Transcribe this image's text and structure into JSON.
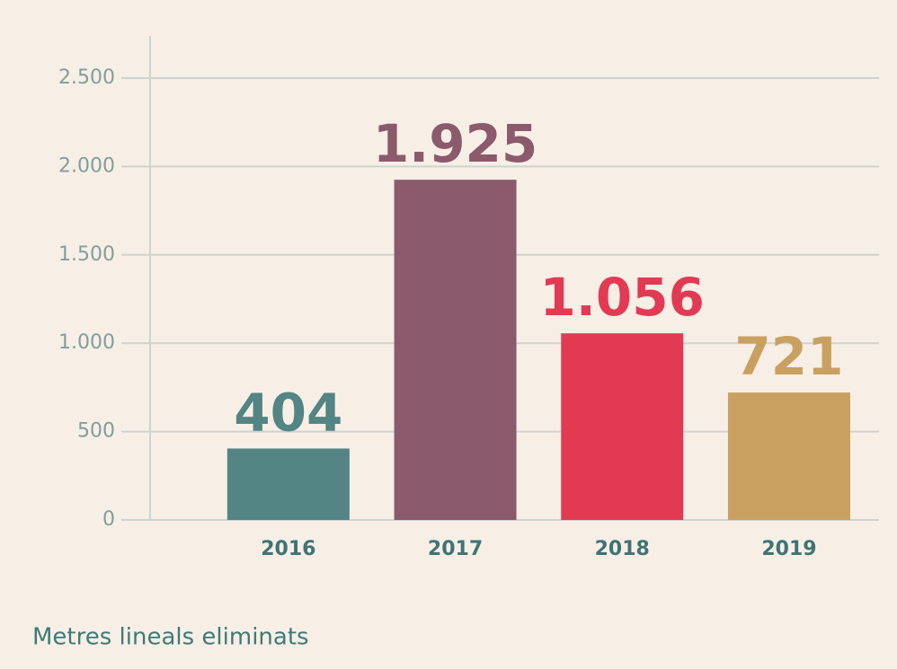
{
  "chart_data": {
    "type": "bar",
    "categories": [
      "2016",
      "2017",
      "2018",
      "2019"
    ],
    "values": [
      404,
      1925,
      1056,
      721
    ],
    "value_labels": [
      "404",
      "1.925",
      "1.056",
      "721"
    ],
    "colors": [
      "#528584",
      "#8b5a6c",
      "#e33a53",
      "#c9a060"
    ],
    "ylim": [
      0,
      2500
    ],
    "yticks": [
      0,
      500,
      {
        "value": 1000,
        "label": "1.000"
      },
      {
        "value": 1500,
        "label": "1.500"
      },
      {
        "value": 2000,
        "label": "2.000"
      },
      {
        "value": 2500,
        "label": "2.500"
      }
    ],
    "grid": true,
    "caption": "Metres lineals eliminats"
  }
}
